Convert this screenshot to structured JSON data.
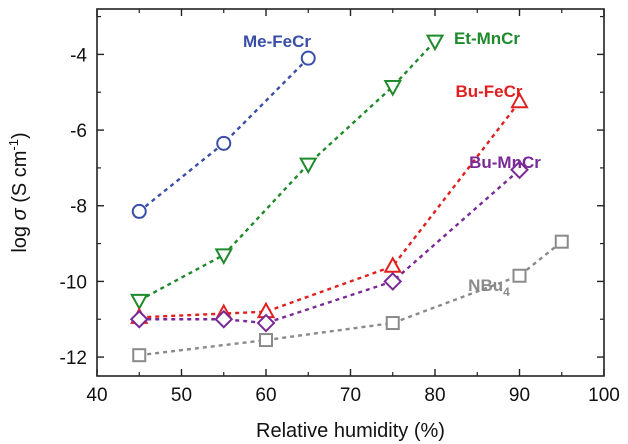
{
  "chart_data": {
    "type": "scatter",
    "title": "",
    "xlabel": "Relative humidity (%)",
    "ylabel_parts": {
      "pre": "log ",
      "sym": "σ",
      "mid": " (S cm",
      "sup": "-1",
      "post": ")"
    },
    "xlim": [
      40,
      100
    ],
    "ylim": [
      -12.5,
      -2.8
    ],
    "xticks": [
      40,
      50,
      60,
      70,
      80,
      90,
      100
    ],
    "yticks": [
      -12,
      -10,
      -8,
      -6,
      -4
    ],
    "grid": false,
    "legend": "none",
    "series": [
      {
        "name": "Me-FeCr",
        "label_parts": {
          "text": "Me-FeCr",
          "sub": ""
        },
        "color": "#3a4ea8",
        "marker": "circle",
        "x": [
          45,
          55,
          65
        ],
        "y": [
          -8.15,
          -6.35,
          -4.1
        ]
      },
      {
        "name": "Et-MnCr",
        "label_parts": {
          "text": "Et-MnCr",
          "sub": ""
        },
        "color": "#1f8a2c",
        "marker": "triangle-down",
        "x": [
          45,
          55,
          65,
          75,
          80
        ],
        "y": [
          -10.5,
          -9.3,
          -6.9,
          -4.85,
          -3.65
        ]
      },
      {
        "name": "Bu-FeCr",
        "label_parts": {
          "text": "Bu-FeCr",
          "sub": ""
        },
        "color": "#e02020",
        "marker": "triangle-up",
        "x": [
          45,
          55,
          60,
          75,
          90
        ],
        "y": [
          -10.95,
          -10.85,
          -10.8,
          -9.6,
          -5.25
        ]
      },
      {
        "name": "Bu-MnCr",
        "label_parts": {
          "text": "Bu-MnCr",
          "sub": ""
        },
        "color": "#7a2a96",
        "marker": "diamond",
        "x": [
          45,
          55,
          60,
          75,
          90
        ],
        "y": [
          -11.0,
          -11.0,
          -11.1,
          -10.0,
          -7.05
        ]
      },
      {
        "name": "NBu4",
        "label_parts": {
          "text": "NBu",
          "sub": "4"
        },
        "color": "#8a8a8a",
        "marker": "square",
        "x": [
          45,
          60,
          75,
          90,
          95
        ],
        "y": [
          -11.95,
          -11.55,
          -11.1,
          -9.85,
          -8.95
        ]
      }
    ]
  }
}
